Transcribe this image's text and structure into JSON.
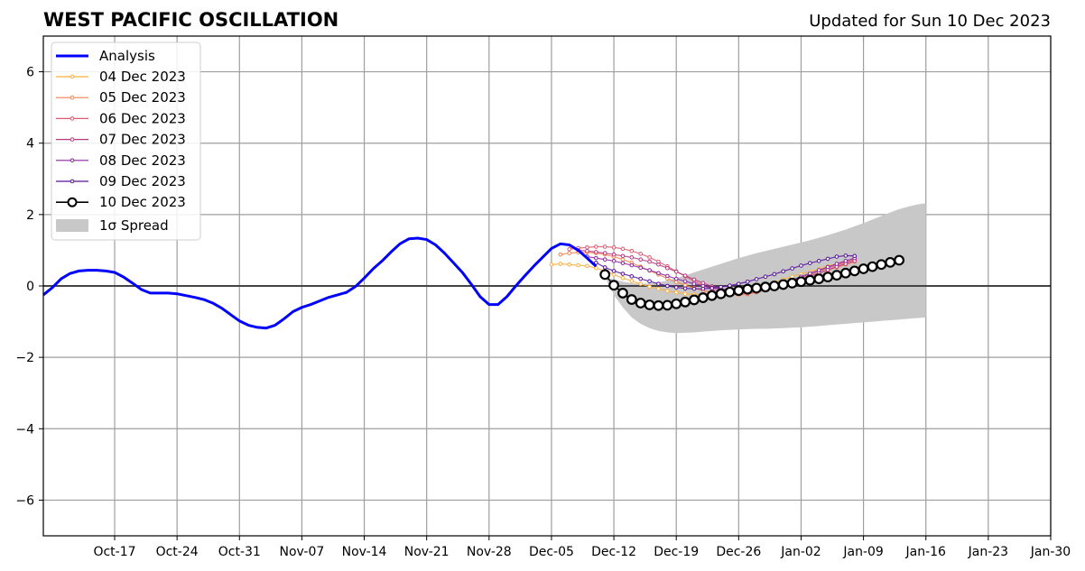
{
  "chart_data": {
    "type": "line",
    "title": "WEST PACIFIC OSCILLATION",
    "subtitle": "Updated for Sun 10 Dec 2023",
    "xlabel": "",
    "ylabel": "",
    "xlim": [
      "2023-10-09",
      "2024-01-30"
    ],
    "ylim": [
      -7,
      7
    ],
    "grid": true,
    "legend_position": "top-left",
    "x_ticks": [
      "2023-10-17",
      "2023-10-24",
      "2023-10-31",
      "2023-11-07",
      "2023-11-14",
      "2023-11-21",
      "2023-11-28",
      "2023-12-05",
      "2023-12-12",
      "2023-12-19",
      "2023-12-26",
      "2024-01-02",
      "2024-01-09",
      "2024-01-16",
      "2024-01-23",
      "2024-01-30"
    ],
    "x_tick_labels": [
      "Oct-17",
      "Oct-24",
      "Oct-31",
      "Nov-07",
      "Nov-14",
      "Nov-21",
      "Nov-28",
      "Dec-05",
      "Dec-12",
      "Dec-19",
      "Dec-26",
      "Jan-02",
      "Jan-09",
      "Jan-16",
      "Jan-23",
      "Jan-30"
    ],
    "y_ticks": [
      -6,
      -4,
      -2,
      0,
      2,
      4,
      6
    ],
    "y_tick_labels": [
      "−6",
      "−4",
      "−2",
      "0",
      "2",
      "4",
      "6"
    ],
    "analysis": {
      "name": "Analysis",
      "color": "#0000ff",
      "points": [
        [
          "2023-10-09",
          -0.25
        ],
        [
          "2023-10-10",
          -0.05
        ],
        [
          "2023-10-11",
          0.2
        ],
        [
          "2023-10-12",
          0.35
        ],
        [
          "2023-10-13",
          0.42
        ],
        [
          "2023-10-14",
          0.44
        ],
        [
          "2023-10-15",
          0.44
        ],
        [
          "2023-10-16",
          0.42
        ],
        [
          "2023-10-17",
          0.38
        ],
        [
          "2023-10-18",
          0.25
        ],
        [
          "2023-10-19",
          0.08
        ],
        [
          "2023-10-20",
          -0.1
        ],
        [
          "2023-10-21",
          -0.2
        ],
        [
          "2023-10-22",
          -0.2
        ],
        [
          "2023-10-23",
          -0.2
        ],
        [
          "2023-10-24",
          -0.22
        ],
        [
          "2023-10-25",
          -0.27
        ],
        [
          "2023-10-26",
          -0.32
        ],
        [
          "2023-10-27",
          -0.38
        ],
        [
          "2023-10-28",
          -0.48
        ],
        [
          "2023-10-29",
          -0.62
        ],
        [
          "2023-10-30",
          -0.8
        ],
        [
          "2023-10-31",
          -0.98
        ],
        [
          "2023-11-01",
          -1.1
        ],
        [
          "2023-11-02",
          -1.16
        ],
        [
          "2023-11-03",
          -1.18
        ],
        [
          "2023-11-04",
          -1.1
        ],
        [
          "2023-11-05",
          -0.92
        ],
        [
          "2023-11-06",
          -0.72
        ],
        [
          "2023-11-07",
          -0.6
        ],
        [
          "2023-11-08",
          -0.52
        ],
        [
          "2023-11-09",
          -0.42
        ],
        [
          "2023-11-10",
          -0.32
        ],
        [
          "2023-11-11",
          -0.25
        ],
        [
          "2023-11-12",
          -0.18
        ],
        [
          "2023-11-13",
          -0.02
        ],
        [
          "2023-11-14",
          0.22
        ],
        [
          "2023-11-15",
          0.48
        ],
        [
          "2023-11-16",
          0.7
        ],
        [
          "2023-11-17",
          0.95
        ],
        [
          "2023-11-18",
          1.18
        ],
        [
          "2023-11-19",
          1.32
        ],
        [
          "2023-11-20",
          1.34
        ],
        [
          "2023-11-21",
          1.3
        ],
        [
          "2023-11-22",
          1.15
        ],
        [
          "2023-11-23",
          0.92
        ],
        [
          "2023-11-24",
          0.65
        ],
        [
          "2023-11-25",
          0.38
        ],
        [
          "2023-11-26",
          0.05
        ],
        [
          "2023-11-27",
          -0.3
        ],
        [
          "2023-11-28",
          -0.52
        ],
        [
          "2023-11-29",
          -0.52
        ],
        [
          "2023-11-30",
          -0.3
        ],
        [
          "2023-12-01",
          0.0
        ],
        [
          "2023-12-02",
          0.28
        ],
        [
          "2023-12-03",
          0.55
        ],
        [
          "2023-12-04",
          0.8
        ],
        [
          "2023-12-05",
          1.05
        ],
        [
          "2023-12-06",
          1.18
        ],
        [
          "2023-12-07",
          1.15
        ],
        [
          "2023-12-08",
          1.0
        ],
        [
          "2023-12-09",
          0.78
        ],
        [
          "2023-12-10",
          0.55
        ]
      ]
    },
    "forecasts": [
      {
        "name": "04 Dec 2023",
        "color": "#fcae3c",
        "start": "2023-12-05",
        "values": [
          0.6,
          0.62,
          0.6,
          0.58,
          0.56,
          0.5,
          0.42,
          0.32,
          0.22,
          0.14,
          0.06,
          -0.02,
          -0.08,
          -0.14,
          -0.18,
          -0.22,
          -0.24,
          -0.26,
          -0.26,
          -0.25,
          -0.22,
          -0.18,
          -0.13,
          -0.06,
          0.02,
          0.1,
          0.18,
          0.26,
          0.33,
          0.4,
          0.47,
          0.55,
          0.62,
          0.68,
          0.74
        ]
      },
      {
        "name": "05 Dec 2023",
        "color": "#f4814b",
        "start": "2023-12-06",
        "values": [
          0.88,
          0.92,
          0.94,
          0.94,
          0.92,
          0.88,
          0.82,
          0.74,
          0.65,
          0.54,
          0.43,
          0.32,
          0.21,
          0.11,
          0.02,
          -0.06,
          -0.13,
          -0.18,
          -0.22,
          -0.24,
          -0.25,
          -0.23,
          -0.18,
          -0.12,
          -0.04,
          0.04,
          0.12,
          0.2,
          0.28,
          0.36,
          0.44,
          0.52,
          0.6,
          0.68
        ]
      },
      {
        "name": "06 Dec 2023",
        "color": "#de5a6e",
        "start": "2023-12-07",
        "values": [
          1.03,
          1.06,
          1.08,
          1.1,
          1.1,
          1.08,
          1.04,
          0.98,
          0.9,
          0.8,
          0.68,
          0.55,
          0.41,
          0.27,
          0.13,
          0.01,
          -0.09,
          -0.16,
          -0.2,
          -0.22,
          -0.21,
          -0.17,
          -0.11,
          -0.04,
          0.05,
          0.14,
          0.23,
          0.32,
          0.41,
          0.5,
          0.58,
          0.66,
          0.74
        ]
      },
      {
        "name": "07 Dec 2023",
        "color": "#b8387f",
        "start": "2023-12-08",
        "values": [
          1.0,
          0.98,
          0.95,
          0.92,
          0.88,
          0.84,
          0.8,
          0.74,
          0.68,
          0.6,
          0.5,
          0.4,
          0.29,
          0.18,
          0.08,
          -0.01,
          -0.08,
          -0.13,
          -0.16,
          -0.17,
          -0.16,
          -0.12,
          -0.06,
          0.01,
          0.09,
          0.18,
          0.27,
          0.36,
          0.45,
          0.54,
          0.62,
          0.7
        ]
      },
      {
        "name": "08 Dec 2023",
        "color": "#8b23a0",
        "start": "2023-12-09",
        "values": [
          0.82,
          0.78,
          0.74,
          0.7,
          0.64,
          0.58,
          0.51,
          0.44,
          0.36,
          0.28,
          0.2,
          0.13,
          0.06,
          0.0,
          -0.05,
          -0.09,
          -0.11,
          -0.12,
          -0.11,
          -0.08,
          -0.04,
          0.02,
          0.09,
          0.17,
          0.26,
          0.35,
          0.44,
          0.53,
          0.62,
          0.7,
          0.78
        ]
      },
      {
        "name": "09 Dec 2023",
        "color": "#55119a",
        "start": "2023-12-10",
        "values": [
          0.65,
          0.52,
          0.42,
          0.34,
          0.27,
          0.2,
          0.13,
          0.06,
          0.0,
          -0.04,
          -0.07,
          -0.08,
          -0.08,
          -0.06,
          -0.03,
          0.01,
          0.06,
          0.12,
          0.19,
          0.26,
          0.33,
          0.41,
          0.49,
          0.57,
          0.64,
          0.7,
          0.76,
          0.82,
          0.85,
          0.84
        ]
      },
      {
        "name": "10 Dec 2023",
        "color": "#000000",
        "start": "2023-12-11",
        "values": [
          0.32,
          0.02,
          -0.2,
          -0.38,
          -0.48,
          -0.53,
          -0.55,
          -0.54,
          -0.5,
          -0.45,
          -0.39,
          -0.33,
          -0.27,
          -0.22,
          -0.17,
          -0.13,
          -0.09,
          -0.06,
          -0.03,
          0.0,
          0.04,
          0.08,
          0.12,
          0.16,
          0.2,
          0.25,
          0.3,
          0.36,
          0.42,
          0.48,
          0.54,
          0.6,
          0.66,
          0.72
        ]
      }
    ],
    "spread": {
      "name": "1σ Spread",
      "color": "#c8c8c8",
      "start": "2023-12-11",
      "upper": [
        0.25,
        0.18,
        0.12,
        0.08,
        0.06,
        0.07,
        0.1,
        0.15,
        0.22,
        0.3,
        0.38,
        0.46,
        0.54,
        0.62,
        0.7,
        0.78,
        0.85,
        0.92,
        0.98,
        1.04,
        1.1,
        1.16,
        1.22,
        1.28,
        1.35,
        1.42,
        1.5,
        1.58,
        1.67,
        1.76,
        1.86,
        1.96,
        2.06,
        2.15,
        2.22,
        2.28,
        2.32
      ],
      "lower": [
        0.25,
        -0.25,
        -0.6,
        -0.88,
        -1.06,
        -1.18,
        -1.26,
        -1.3,
        -1.32,
        -1.31,
        -1.3,
        -1.28,
        -1.26,
        -1.24,
        -1.23,
        -1.22,
        -1.21,
        -1.2,
        -1.2,
        -1.19,
        -1.18,
        -1.17,
        -1.16,
        -1.14,
        -1.12,
        -1.1,
        -1.08,
        -1.06,
        -1.04,
        -1.02,
        -1.0,
        -0.98,
        -0.96,
        -0.94,
        -0.92,
        -0.9,
        -0.88
      ]
    }
  }
}
